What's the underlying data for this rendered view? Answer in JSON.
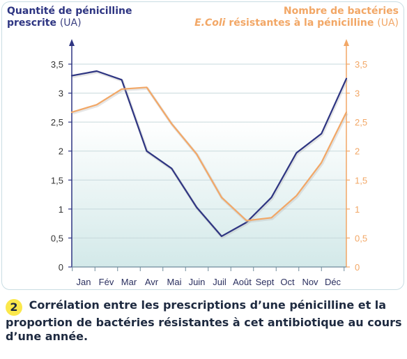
{
  "figure_number": "2",
  "caption": "Corrélation entre les prescriptions d’une pénicilline et la proportion de bactéries résistantes à cet antibiotique au cours d’une année.",
  "colors": {
    "left": "#2e3582",
    "right": "#f2a766",
    "grid": "#c7d9dc"
  },
  "chart_data": {
    "type": "line",
    "left_axis": {
      "label_line1": "Quantité de pénicilline",
      "label_line2": "prescrite",
      "unit": "(UA)",
      "ylim": [
        0,
        3.5
      ],
      "ticks": [
        "0",
        "0,5",
        "1",
        "1,5",
        "2",
        "2,5",
        "3",
        "3,5"
      ]
    },
    "right_axis": {
      "label_line1": "Nombre de bactéries",
      "label_species": "E.Coli",
      "label_rest": " résistantes à la pénicilline",
      "unit": "(UA)",
      "ylim": [
        0,
        3.5
      ],
      "ticks": [
        "0",
        "0,5",
        "1",
        "1,5",
        "2",
        "2,5",
        "3",
        "3,5"
      ]
    },
    "categories": [
      "Jan",
      "Fév",
      "Mar",
      "Avr",
      "Mai",
      "Juin",
      "Juil",
      "Août",
      "Sept",
      "Oct",
      "Nov",
      "Déc"
    ],
    "series": [
      {
        "axis": "left",
        "color": "#2e3582",
        "values": [
          3.3,
          3.38,
          3.23,
          2.0,
          1.7,
          1.03,
          0.53,
          0.77,
          1.2,
          1.97,
          2.3,
          3.25
        ]
      },
      {
        "axis": "right",
        "color": "#f2a766",
        "values": [
          2.67,
          2.8,
          3.07,
          3.1,
          2.47,
          1.95,
          1.2,
          0.8,
          0.85,
          1.23,
          1.8,
          2.67
        ]
      }
    ],
    "grid": true
  }
}
